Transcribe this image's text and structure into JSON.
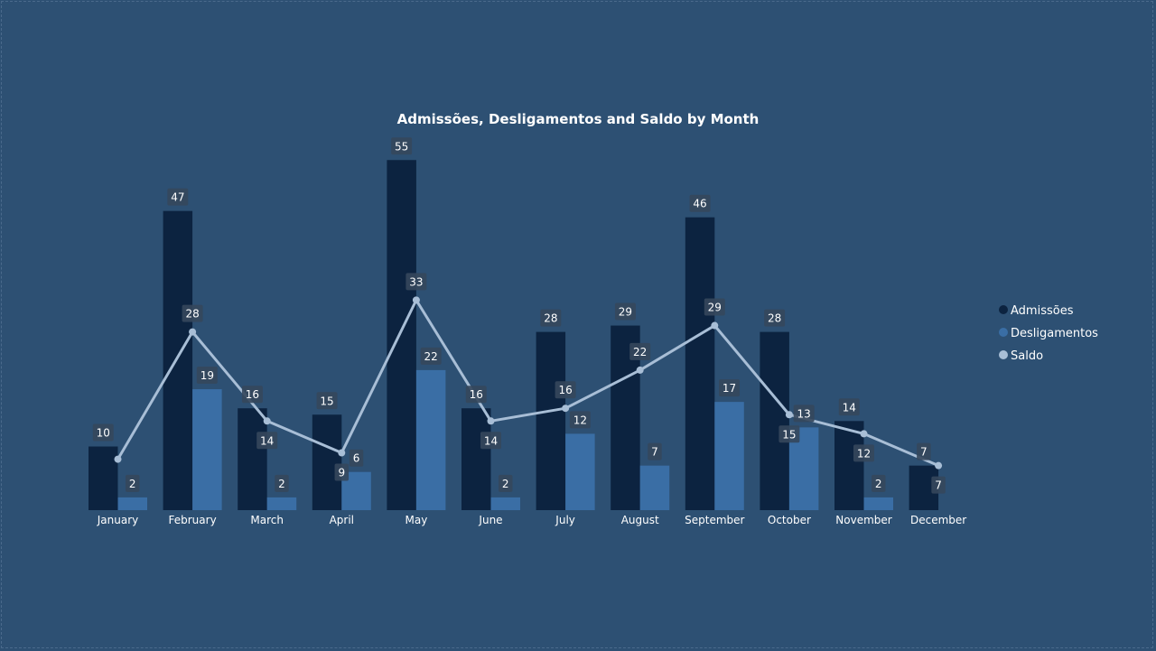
{
  "chart_data": {
    "type": "bar",
    "title": "Admissões, Desligamentos and Saldo by Month",
    "categories": [
      "January",
      "February",
      "March",
      "April",
      "May",
      "June",
      "July",
      "August",
      "September",
      "October",
      "November",
      "December"
    ],
    "series": [
      {
        "name": "Admissões",
        "kind": "bar",
        "color": "#0c2340",
        "values": [
          10,
          47,
          16,
          15,
          55,
          16,
          28,
          29,
          46,
          28,
          14,
          7
        ]
      },
      {
        "name": "Desligamentos",
        "kind": "bar",
        "color": "#3a6ea5",
        "values": [
          2,
          19,
          2,
          6,
          22,
          2,
          12,
          7,
          17,
          13,
          2,
          null
        ]
      },
      {
        "name": "Saldo",
        "kind": "line",
        "color": "#a8bed6",
        "values": [
          8,
          28,
          14,
          9,
          33,
          14,
          16,
          22,
          29,
          15,
          12,
          7
        ]
      }
    ],
    "data_labels": {
      "Admissões": [
        "10",
        "47",
        "16",
        "15",
        "55",
        "16",
        "28",
        "29",
        "46",
        "28",
        "14",
        "7"
      ],
      "Desligamentos": [
        "2",
        "19",
        "2",
        "6",
        "22",
        "2",
        "12",
        "7",
        "17",
        "13",
        "2",
        ""
      ],
      "Saldo": [
        "",
        "28",
        "14",
        "9",
        "33",
        "14",
        "16",
        "22",
        "29",
        "15",
        "12",
        "7"
      ]
    },
    "ylim": [
      0,
      55
    ],
    "grid": false,
    "legend": "right"
  }
}
